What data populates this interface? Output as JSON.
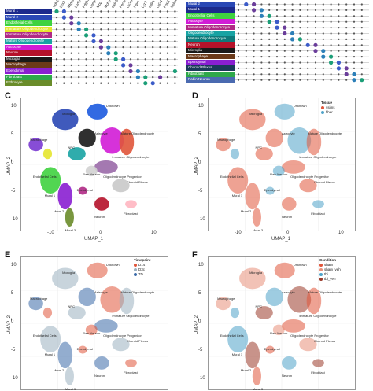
{
  "letters": {
    "c": "C",
    "d": "D",
    "e": "E",
    "f": "F"
  },
  "dotplotA": {
    "genes": [
      "Aldh1l1",
      "Lhx2",
      "Mfge8",
      "Ludfp",
      "Pdgfra",
      "Cspg4",
      "Mbp",
      "Mobp",
      "Cldn5",
      "Pecam1",
      "Cx3cr1",
      "Ptprc",
      "Lyz2",
      "Cd8a",
      "Cd74",
      "Foxj1",
      "Rbfox3"
    ],
    "cells": [
      {
        "label": "Mural 1",
        "color": "#1c2a8c"
      },
      {
        "label": "Mural 2",
        "color": "#2a48b5"
      },
      {
        "label": "Endothelial Cells",
        "color": "#3fd23f"
      },
      {
        "label": "Immature Oligodendrocyte",
        "color": "#e6e62e"
      },
      {
        "label": "Immature Oligodendrocyte",
        "color": "#b02a85"
      },
      {
        "label": "Mature Oligodendrocyte",
        "color": "#18a3a3"
      },
      {
        "label": "Astrocyte",
        "color": "#d11cd6"
      },
      {
        "label": "Neuron",
        "color": "#b5122a"
      },
      {
        "label": "Microglia",
        "color": "#1a1a1a"
      },
      {
        "label": "Macrophage",
        "color": "#6b3a1a"
      },
      {
        "label": "Ependymal",
        "color": "#8a1fd1"
      },
      {
        "label": "Fibroblast",
        "color": "#2ea84a"
      },
      {
        "label": "Erthrocyte",
        "color": "#6a8c2a"
      }
    ]
  },
  "dotplotB": {
    "cells": [
      {
        "label": "Mural 2",
        "color": "#2a48b5"
      },
      {
        "label": "Mural 1",
        "color": "#1c2a8c"
      },
      {
        "label": "Endothelial Cells",
        "color": "#3fd23f"
      },
      {
        "label": "Astrocyte",
        "color": "#d11cd6"
      },
      {
        "label": "Immature Oligodendrocyte",
        "color": "#b02a85"
      },
      {
        "label": "Oligodendrocyte",
        "color": "#18a3a3"
      },
      {
        "label": "Mature Oligodendrocyte",
        "color": "#0f7a7a"
      },
      {
        "label": "Neuron",
        "color": "#b5122a"
      },
      {
        "label": "Microglia",
        "color": "#1a1a1a"
      },
      {
        "label": "Macrophage",
        "color": "#6b3a1a"
      },
      {
        "label": "Ependymal",
        "color": "#8a1fd1"
      },
      {
        "label": "Choroid Plexus",
        "color": "#1a3a5a"
      },
      {
        "label": "Fibroblast",
        "color": "#2ea84a"
      },
      {
        "label": "Rabin Neuron",
        "color": "#4a6ab0"
      }
    ]
  },
  "umap": {
    "xlabel": "UMAP_1",
    "ylabel": "UMAP_2",
    "yticks": [
      "10",
      "5",
      "0",
      "-5",
      "-10"
    ],
    "xticks": [
      "-10",
      "0",
      "10"
    ],
    "clusters": [
      "Unknown",
      "Microglia",
      "Astrocyte",
      "Mature Oligodendrocyte",
      "Macrophage",
      "NPC",
      "Immature Oligodendrocyte",
      "Endothelial Cells",
      "Raw Neuron",
      "Oligodendrocyte Progenitor",
      "Mural 1",
      "Ependymal",
      "Choroid Plexus",
      "Mural 2",
      "Neuron",
      "Fibroblast",
      "Mural 3"
    ]
  },
  "legendD": {
    "title": "Tissue",
    "items": [
      {
        "label": "ssims",
        "color": "#e0553a"
      },
      {
        "label": "fiber",
        "color": "#4fa3c9"
      }
    ]
  },
  "legendE": {
    "title": "Timepoint",
    "items": [
      {
        "label": "D14",
        "color": "#e0553a"
      },
      {
        "label": "D3c",
        "color": "#9ab0c0"
      },
      {
        "label": "7D",
        "color": "#3a6aa8"
      }
    ]
  },
  "legendF": {
    "title": "Condition",
    "items": [
      {
        "label": "sham",
        "color": "#e0553a"
      },
      {
        "label": "sham_veh",
        "color": "#e8907a"
      },
      {
        "label": "tbi",
        "color": "#4fa3c9"
      },
      {
        "label": "tbi_veh",
        "color": "#9a3a2a"
      }
    ]
  }
}
